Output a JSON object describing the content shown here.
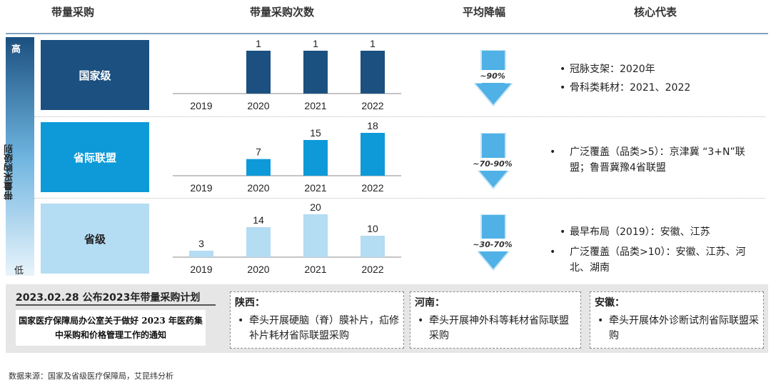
{
  "headers": {
    "level": "带量采购",
    "count": "带量采购次数",
    "rate": "平均降幅",
    "rep": "核心代表"
  },
  "axis": {
    "high": "高",
    "low": "低",
    "title": "带量采购级别"
  },
  "rows": [
    {
      "level": "国家级",
      "color": "#1b5080",
      "rate": "~90%",
      "reps": [
        "冠脉支架：2020年",
        "骨科类耗材：2021、2022"
      ]
    },
    {
      "level": "省际联盟",
      "color": "#0e9ad8",
      "rate": "~70-90%",
      "reps": [
        "广泛覆盖（品类>5）：京津冀 “3+N”联盟；鲁晋冀豫4省联盟"
      ]
    },
    {
      "level": "省级",
      "color": "#b4dcf3",
      "rate": "~30-70%",
      "reps": [
        "最早布局（2019）：安徽、江苏",
        "广泛覆盖（品类>10）：安徽、江苏、河北、湖南"
      ]
    }
  ],
  "chart_data": [
    {
      "type": "bar",
      "title": "国家级",
      "categories": [
        "2019",
        "2020",
        "2021",
        "2022"
      ],
      "values": [
        null,
        1,
        1,
        1
      ],
      "labels": [
        "",
        "1",
        "1",
        "1"
      ],
      "color": "#1b5080"
    },
    {
      "type": "bar",
      "title": "省际联盟",
      "categories": [
        "2019",
        "2020",
        "2021",
        "2022"
      ],
      "values": [
        null,
        7,
        15,
        18
      ],
      "labels": [
        "",
        "7",
        "15",
        "18"
      ],
      "color": "#0e9ad8"
    },
    {
      "type": "bar",
      "title": "省级",
      "categories": [
        "2019",
        "2020",
        "2021",
        "2022"
      ],
      "values": [
        3,
        14,
        20,
        10
      ],
      "labels": [
        "3",
        "14",
        "20",
        "10"
      ],
      "color": "#b4dcf3"
    }
  ],
  "plan": {
    "title": "2023.02.28  公布2023年带量采购计划",
    "notice": "国家医疗保障局办公室关于做好 2023 年医药集中采购和价格管理工作的通知",
    "provinces": [
      {
        "name": "陕西：",
        "body": "牵头开展硬脑（脊）膜补片，疝修补片耗材省际联盟采购"
      },
      {
        "name": "河南：",
        "body": "牵头开展神外科等耗材省际联盟采购"
      },
      {
        "name": "安徽：",
        "body": "牵头开展体外诊断试剂省际联盟采购"
      }
    ]
  },
  "bullet": "•",
  "source": "数据来源：国家及省级医疗保障局，艾昆纬分析"
}
